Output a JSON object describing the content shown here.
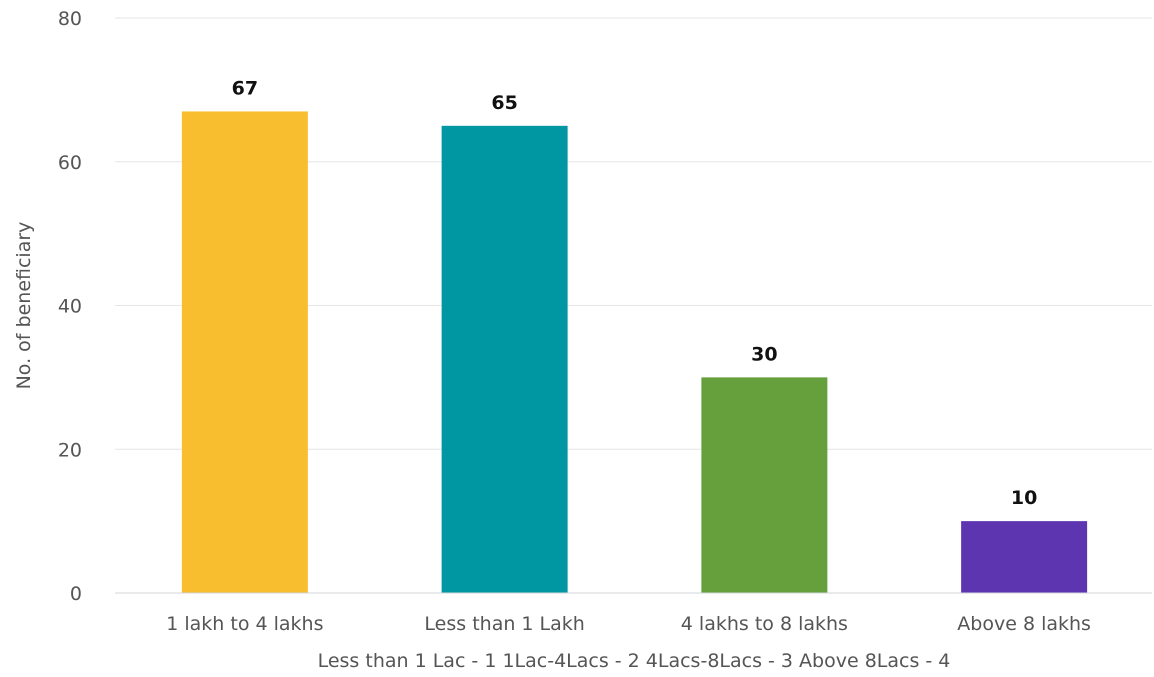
{
  "chart_data": {
    "type": "bar",
    "title": "",
    "ylabel": "No. of beneficiary",
    "xlabel": "Less than 1 Lac - 1 1Lac-4Lacs - 2 4Lacs-8Lacs - 3 Above 8Lacs - 4",
    "categories": [
      "1 lakh to 4 lakhs",
      "Less than 1 Lakh",
      "4 lakhs to 8 lakhs",
      "Above 8 lakhs"
    ],
    "values": [
      67,
      65,
      30,
      10
    ],
    "colors": [
      "#f8be2f",
      "#0097a3",
      "#65a03c",
      "#5e35b1"
    ],
    "ylim": [
      0,
      80
    ],
    "yticks": [
      0,
      20,
      40,
      60,
      80
    ],
    "grid": true,
    "legend": "none",
    "data_labels": true
  }
}
